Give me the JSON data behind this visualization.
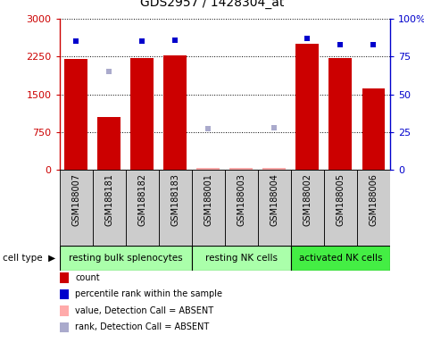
{
  "title": "GDS2957 / 1428304_at",
  "samples": [
    "GSM188007",
    "GSM188181",
    "GSM188182",
    "GSM188183",
    "GSM188001",
    "GSM188003",
    "GSM188004",
    "GSM188002",
    "GSM188005",
    "GSM188006"
  ],
  "counts": [
    2200,
    1050,
    2220,
    2280,
    null,
    null,
    null,
    2500,
    2220,
    1620
  ],
  "counts_absent": [
    null,
    null,
    null,
    null,
    30,
    30,
    30,
    null,
    null,
    null
  ],
  "percentile_ranks": [
    85,
    null,
    85,
    86,
    null,
    null,
    null,
    87,
    83,
    83
  ],
  "percentile_ranks_absent": [
    null,
    65,
    null,
    null,
    27,
    null,
    28,
    null,
    null,
    null
  ],
  "cell_types": [
    {
      "label": "resting bulk splenocytes",
      "start": 0,
      "end": 4,
      "color": "#aaffaa"
    },
    {
      "label": "resting NK cells",
      "start": 4,
      "end": 7,
      "color": "#aaffaa"
    },
    {
      "label": "activated NK cells",
      "start": 7,
      "end": 10,
      "color": "#44ee44"
    }
  ],
  "ylim_left": [
    0,
    3000
  ],
  "ylim_right": [
    0,
    100
  ],
  "yticks_left": [
    0,
    750,
    1500,
    2250,
    3000
  ],
  "yticks_right": [
    0,
    25,
    50,
    75,
    100
  ],
  "ytick_labels_left": [
    "0",
    "750",
    "1500",
    "2250",
    "3000"
  ],
  "ytick_labels_right": [
    "0",
    "25",
    "50",
    "75",
    "100%"
  ],
  "bar_color": "#cc0000",
  "absent_bar_color": "#ffaaaa",
  "rank_color": "#0000cc",
  "absent_rank_color": "#aaaacc",
  "bg_color": "#ffffff",
  "plot_bg": "#ffffff",
  "sample_box_color": "#cccccc",
  "cell_type_label": "cell type",
  "legend_items": [
    {
      "label": "count",
      "color": "#cc0000"
    },
    {
      "label": "percentile rank within the sample",
      "color": "#0000cc"
    },
    {
      "label": "value, Detection Call = ABSENT",
      "color": "#ffaaaa"
    },
    {
      "label": "rank, Detection Call = ABSENT",
      "color": "#aaaacc"
    }
  ]
}
